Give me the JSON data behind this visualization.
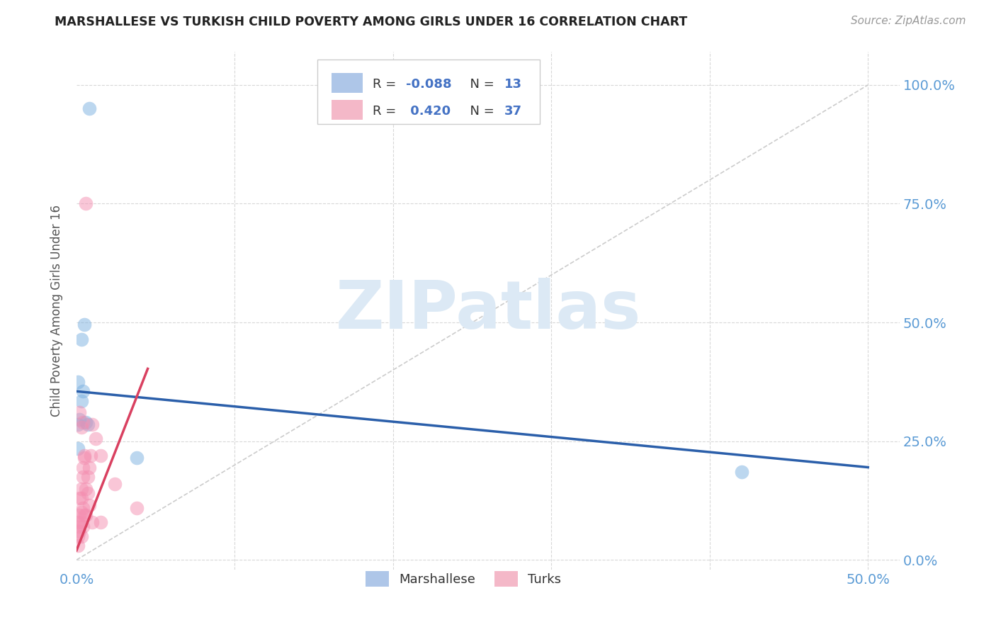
{
  "title": "MARSHALLESE VS TURKISH CHILD POVERTY AMONG GIRLS UNDER 16 CORRELATION CHART",
  "source": "Source: ZipAtlas.com",
  "ylabel": "Child Poverty Among Girls Under 16",
  "ytick_labels": [
    "0.0%",
    "25.0%",
    "50.0%",
    "75.0%",
    "100.0%"
  ],
  "ytick_values": [
    0.0,
    0.25,
    0.5,
    0.75,
    1.0
  ],
  "xtick_vals": [
    0.0,
    0.1,
    0.2,
    0.3,
    0.4,
    0.5
  ],
  "xlim": [
    0.0,
    0.52
  ],
  "ylim": [
    -0.02,
    1.07
  ],
  "title_color": "#222222",
  "source_color": "#999999",
  "axis_label_color": "#5b9bd5",
  "watermark_text": "ZIPatlas",
  "watermark_color": "#dce9f5",
  "legend_color1": "#aec6e8",
  "legend_color2": "#f4b8c8",
  "marshallese_color": "#7ab0e0",
  "turks_color": "#f48fb1",
  "regression_blue_color": "#2b5faa",
  "regression_pink_color": "#d94060",
  "diagonal_color": "#cccccc",
  "marshallese_x": [
    0.008,
    0.003,
    0.005,
    0.006,
    0.007,
    0.004,
    0.003,
    0.001,
    0.038,
    0.42,
    0.001,
    0.002,
    0.001
  ],
  "marshallese_y": [
    0.95,
    0.465,
    0.495,
    0.29,
    0.285,
    0.355,
    0.335,
    0.285,
    0.215,
    0.185,
    0.375,
    0.295,
    0.235
  ],
  "turks_x": [
    0.001,
    0.001,
    0.001,
    0.002,
    0.002,
    0.002,
    0.002,
    0.003,
    0.003,
    0.003,
    0.003,
    0.003,
    0.004,
    0.004,
    0.004,
    0.004,
    0.005,
    0.005,
    0.005,
    0.006,
    0.006,
    0.007,
    0.007,
    0.008,
    0.008,
    0.009,
    0.01,
    0.01,
    0.012,
    0.015,
    0.015,
    0.024,
    0.038,
    0.004,
    0.006,
    0.003,
    0.002
  ],
  "turks_y": [
    0.05,
    0.08,
    0.03,
    0.07,
    0.095,
    0.13,
    0.06,
    0.08,
    0.1,
    0.13,
    0.15,
    0.05,
    0.11,
    0.175,
    0.195,
    0.07,
    0.095,
    0.215,
    0.22,
    0.15,
    0.095,
    0.14,
    0.175,
    0.115,
    0.195,
    0.22,
    0.08,
    0.285,
    0.255,
    0.08,
    0.22,
    0.16,
    0.11,
    0.29,
    0.75,
    0.28,
    0.31
  ],
  "marker_size": 200,
  "alpha_scatter": 0.5,
  "regression_blue_intercept": 0.355,
  "regression_blue_slope": -0.32,
  "regression_pink_intercept": 0.02,
  "regression_pink_slope": 8.5
}
